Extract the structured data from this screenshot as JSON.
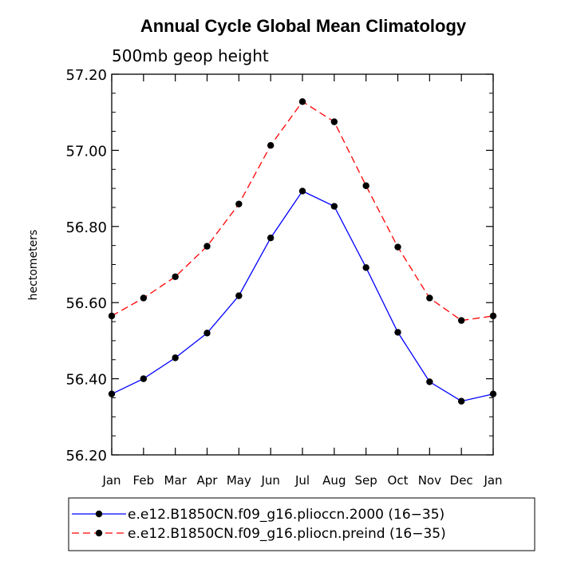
{
  "chart_data": {
    "type": "line",
    "title": "Annual Cycle Global Mean Climatology",
    "subtitle": "500mb geop height",
    "xlabel": "",
    "ylabel": "hectometers",
    "categories": [
      "Jan",
      "Feb",
      "Mar",
      "Apr",
      "May",
      "Jun",
      "Jul",
      "Aug",
      "Sep",
      "Oct",
      "Nov",
      "Dec",
      "Jan"
    ],
    "ylim": [
      56.2,
      57.2
    ],
    "yticks": [
      "56.20",
      "56.40",
      "56.60",
      "56.80",
      "57.00",
      "57.20"
    ],
    "series": [
      {
        "name": "e.e12.B1850CN.f09_g16.plioccn.2000 (16−35)",
        "color": "#0000ff",
        "dash": "solid",
        "values": [
          56.36,
          56.4,
          56.455,
          56.52,
          56.618,
          56.77,
          56.893,
          56.853,
          56.692,
          56.522,
          56.392,
          56.341,
          56.36
        ]
      },
      {
        "name": "e.e12.B1850CN.f09_g16.pliocn.preind (16−35)",
        "color": "#ff0000",
        "dash": "dashed",
        "values": [
          56.565,
          56.612,
          56.668,
          56.748,
          56.859,
          57.013,
          57.128,
          57.075,
          56.907,
          56.746,
          56.612,
          56.553,
          56.565
        ]
      }
    ],
    "grid": false,
    "legend_position": "bottom"
  }
}
